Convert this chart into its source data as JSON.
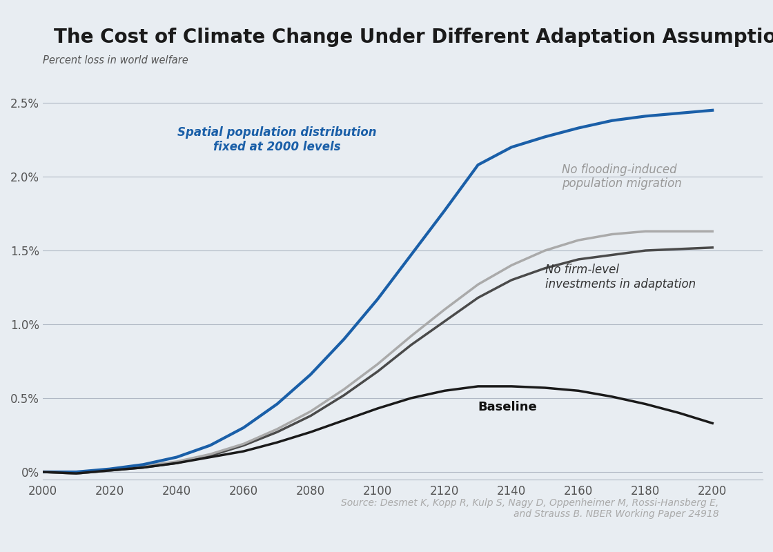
{
  "title": "The Cost of Climate Change Under Different Adaptation Assumptions",
  "ylabel": "Percent loss in world welfare",
  "background_color": "#e8edf2",
  "plot_bg_color": "#e8edf2",
  "title_fontsize": 20,
  "ylabel_fontsize": 11,
  "source_text": "Source: Desmet K, Kopp R, Kulp S, Nagy D, Oppenheimer M, Rossi-Hansberg E,\nand Strauss B. NBER Working Paper 24918",
  "years": [
    2000,
    2010,
    2020,
    2030,
    2040,
    2050,
    2060,
    2070,
    2080,
    2090,
    2100,
    2110,
    2120,
    2130,
    2140,
    2150,
    2160,
    2170,
    2180,
    2190,
    2200
  ],
  "baseline": [
    0.0,
    -0.01,
    0.01,
    0.03,
    0.06,
    0.1,
    0.14,
    0.2,
    0.27,
    0.35,
    0.43,
    0.5,
    0.55,
    0.58,
    0.58,
    0.57,
    0.55,
    0.51,
    0.46,
    0.4,
    0.33
  ],
  "no_firm": [
    0.0,
    -0.01,
    0.01,
    0.03,
    0.06,
    0.11,
    0.18,
    0.27,
    0.38,
    0.52,
    0.68,
    0.86,
    1.02,
    1.18,
    1.3,
    1.38,
    1.44,
    1.47,
    1.5,
    1.51,
    1.52
  ],
  "no_flood": [
    0.0,
    -0.01,
    0.01,
    0.04,
    0.07,
    0.12,
    0.19,
    0.29,
    0.41,
    0.56,
    0.73,
    0.92,
    1.1,
    1.27,
    1.4,
    1.5,
    1.57,
    1.61,
    1.63,
    1.63,
    1.63
  ],
  "spatial_fixed": [
    0.0,
    0.0,
    0.02,
    0.05,
    0.1,
    0.18,
    0.3,
    0.46,
    0.66,
    0.9,
    1.17,
    1.47,
    1.77,
    2.08,
    2.2,
    2.27,
    2.33,
    2.38,
    2.41,
    2.43,
    2.45
  ],
  "baseline_color": "#1a1a1a",
  "no_firm_color": "#4a4a4a",
  "no_flood_color": "#aaaaaa",
  "spatial_color": "#1a5fa8",
  "grid_color": "#b0b8c4",
  "tick_label_color": "#555555",
  "annotation_color_spatial": "#1a5fa8",
  "annotation_color_no_flood": "#999999",
  "annotation_color_no_firm": "#333333",
  "annotation_color_baseline": "#111111",
  "xlim": [
    2000,
    2215
  ],
  "ylim": [
    -0.05,
    2.7
  ],
  "yticks": [
    0.0,
    0.5,
    1.0,
    1.5,
    2.0,
    2.5
  ],
  "ytick_labels": [
    "0%",
    "0.5%",
    "1.0%",
    "1.5%",
    "2.0%",
    "2.5%"
  ],
  "xticks": [
    2000,
    2020,
    2040,
    2060,
    2080,
    2100,
    2120,
    2140,
    2160,
    2180,
    2200
  ]
}
